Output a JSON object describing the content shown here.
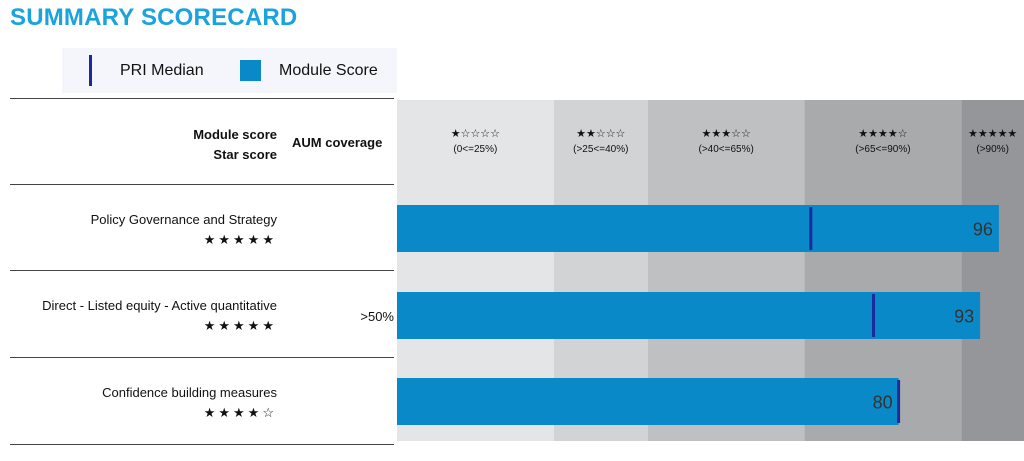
{
  "title": "SUMMARY SCORECARD",
  "legend": {
    "median_label": "PRI Median",
    "score_label": "Module Score"
  },
  "header": {
    "module_score": "Module score",
    "star_score": "Star score",
    "aum_coverage": "AUM coverage"
  },
  "colors": {
    "title": "#1aa3dc",
    "bar": "#0a89c8",
    "median": "#1c2a9b"
  },
  "chart_data": {
    "type": "bar",
    "orientation": "horizontal",
    "xlim": [
      0,
      100
    ],
    "bands": [
      {
        "stars": "★☆☆☆☆",
        "range": "(0<=25%)",
        "from": 0,
        "to": 25,
        "color": "#e4e5e7"
      },
      {
        "stars": "★★☆☆☆",
        "range": "(>25<=40%)",
        "from": 25,
        "to": 40,
        "color": "#d2d3d5"
      },
      {
        "stars": "★★★☆☆",
        "range": "(>40<=65%)",
        "from": 40,
        "to": 65,
        "color": "#bfc0c2"
      },
      {
        "stars": "★★★★☆",
        "range": "(>65<=90%)",
        "from": 65,
        "to": 90,
        "color": "#a9aaac"
      },
      {
        "stars": "★★★★★",
        "range": "(>90%)",
        "from": 90,
        "to": 100,
        "color": "#959699"
      }
    ],
    "rows": [
      {
        "label": "Policy Governance and Strategy",
        "stars": "★★★★★",
        "aum": "",
        "score": 96,
        "median": 66
      },
      {
        "label": "Direct - Listed equity - Active quantitative",
        "stars": "★★★★★",
        "aum": ">50%",
        "score": 93,
        "median": 76
      },
      {
        "label": "Confidence building measures",
        "stars": "★★★★☆",
        "aum": "",
        "score": 80,
        "median": 80
      }
    ]
  }
}
